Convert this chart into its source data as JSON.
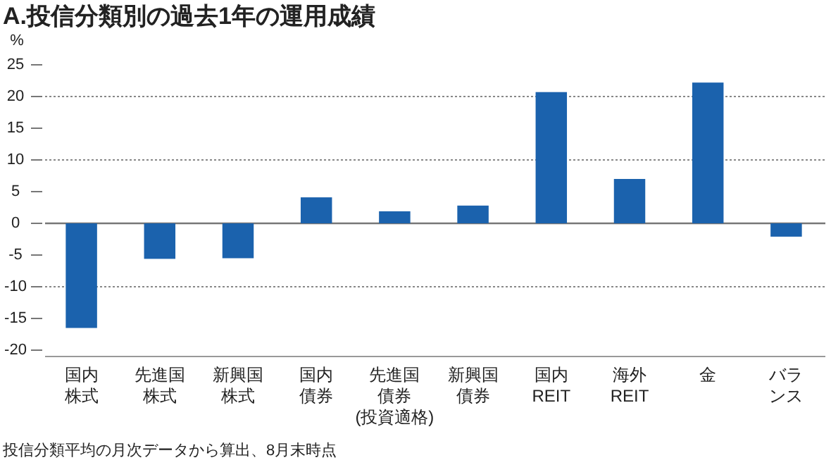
{
  "chart_data": {
    "type": "bar",
    "title": "A.投信分類別の過去1年の運用成績",
    "ylabel": "%",
    "categories": [
      "国内株式",
      "先進国株式",
      "新興国株式",
      "国内債券",
      "先進国債券(投資適格)",
      "新興国債券",
      "国内REIT",
      "海外REIT",
      "金",
      "バランス"
    ],
    "values": [
      -16.5,
      -5.6,
      -5.5,
      4.1,
      1.9,
      2.8,
      20.7,
      7.0,
      22.2,
      -2.1
    ],
    "color": "#1b62ad",
    "ylim": [
      -21,
      25
    ],
    "yticks": [
      -20,
      -15,
      -10,
      -5,
      0,
      5,
      10,
      15,
      20,
      25
    ],
    "grid": false,
    "ref_lines": [
      {
        "axis": "y",
        "value": 20,
        "label": null,
        "color": "#888888",
        "line_style": "dotted"
      },
      {
        "axis": "y",
        "value": 10,
        "label": null,
        "color": "#888888",
        "line_style": "dotted"
      },
      {
        "axis": "y",
        "value": 0,
        "label": null,
        "color": "#777777",
        "line_style": "solid"
      },
      {
        "axis": "y",
        "value": -10,
        "label": null,
        "color": "#888888",
        "line_style": "dotted"
      }
    ],
    "annotations": [
      "投信分類平均の月次データから算出、8月末時点"
    ]
  }
}
